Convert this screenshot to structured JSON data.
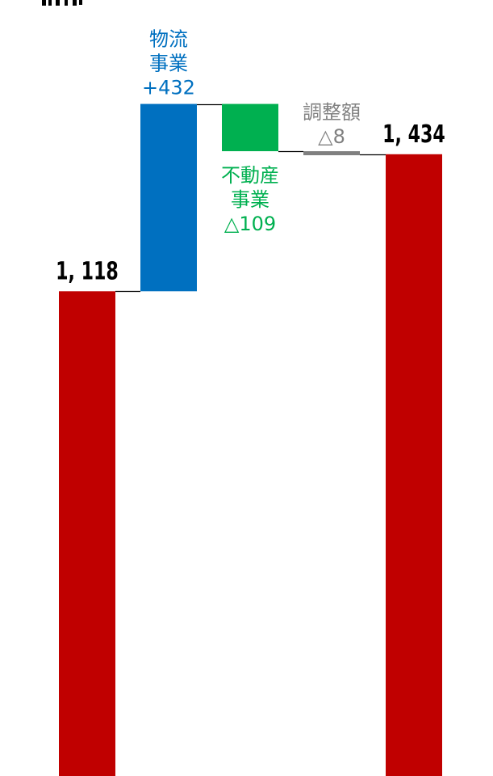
{
  "chart_data": {
    "type": "waterfall",
    "steps": [
      {
        "kind": "total",
        "value": 1118,
        "display": "1, 118",
        "color": "#c00000"
      },
      {
        "kind": "delta",
        "value": 432,
        "lines": [
          "物流",
          "事業",
          "+432"
        ],
        "color": "#0070c0"
      },
      {
        "kind": "delta",
        "value": -109,
        "lines": [
          "不動産",
          "事業",
          "△109"
        ],
        "color": "#00b050"
      },
      {
        "kind": "delta",
        "value": -8,
        "lines": [
          "調整額",
          "△8"
        ],
        "color": "#808080"
      },
      {
        "kind": "total",
        "value": 1434,
        "display": "1, 434",
        "color": "#c00000"
      }
    ],
    "total_label_color": "#000000"
  }
}
